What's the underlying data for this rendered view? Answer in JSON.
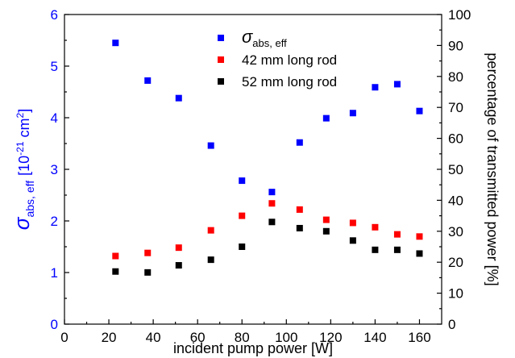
{
  "chart_data": {
    "type": "scatter",
    "xlabel": "incident pump power [W]",
    "ylabel": {
      "symbol": "σ",
      "sub": "abs, eff",
      "unit_open": "[10",
      "exp": "-21",
      "unit": " cm",
      "unit_exp": "2",
      "unit_close": "]"
    },
    "y2label": "percentage of transmitted power [%]",
    "xlim": [
      0,
      170
    ],
    "xticks": [
      0,
      20,
      40,
      60,
      80,
      100,
      120,
      140,
      160
    ],
    "ylim": [
      0,
      6
    ],
    "yticks": [
      0,
      1,
      2,
      3,
      4,
      5,
      6
    ],
    "y2lim": [
      0,
      100
    ],
    "y2ticks": [
      0,
      10,
      20,
      30,
      40,
      50,
      60,
      70,
      80,
      90,
      100
    ],
    "x": [
      23,
      37.5,
      51.5,
      66,
      80,
      93.5,
      106,
      118,
      130,
      140,
      150,
      160
    ],
    "series": [
      {
        "name": "σ",
        "name_sub": "abs, eff",
        "color": "#0000ff",
        "axis": "y",
        "values": [
          5.45,
          4.72,
          4.38,
          3.46,
          2.78,
          2.56,
          3.52,
          3.99,
          4.09,
          4.59,
          4.65,
          4.13
        ]
      },
      {
        "name": "42 mm long rod",
        "color": "#ff0000",
        "axis": "y2",
        "values": [
          22,
          23,
          24.7,
          30.3,
          35,
          39,
          37,
          33.7,
          32.7,
          31.3,
          29,
          28.3
        ]
      },
      {
        "name": "52 mm long rod",
        "color": "#000000",
        "axis": "y2",
        "values": [
          17,
          16.7,
          19,
          20.8,
          25,
          33,
          31,
          30,
          27,
          24,
          24,
          22.8
        ]
      }
    ]
  }
}
